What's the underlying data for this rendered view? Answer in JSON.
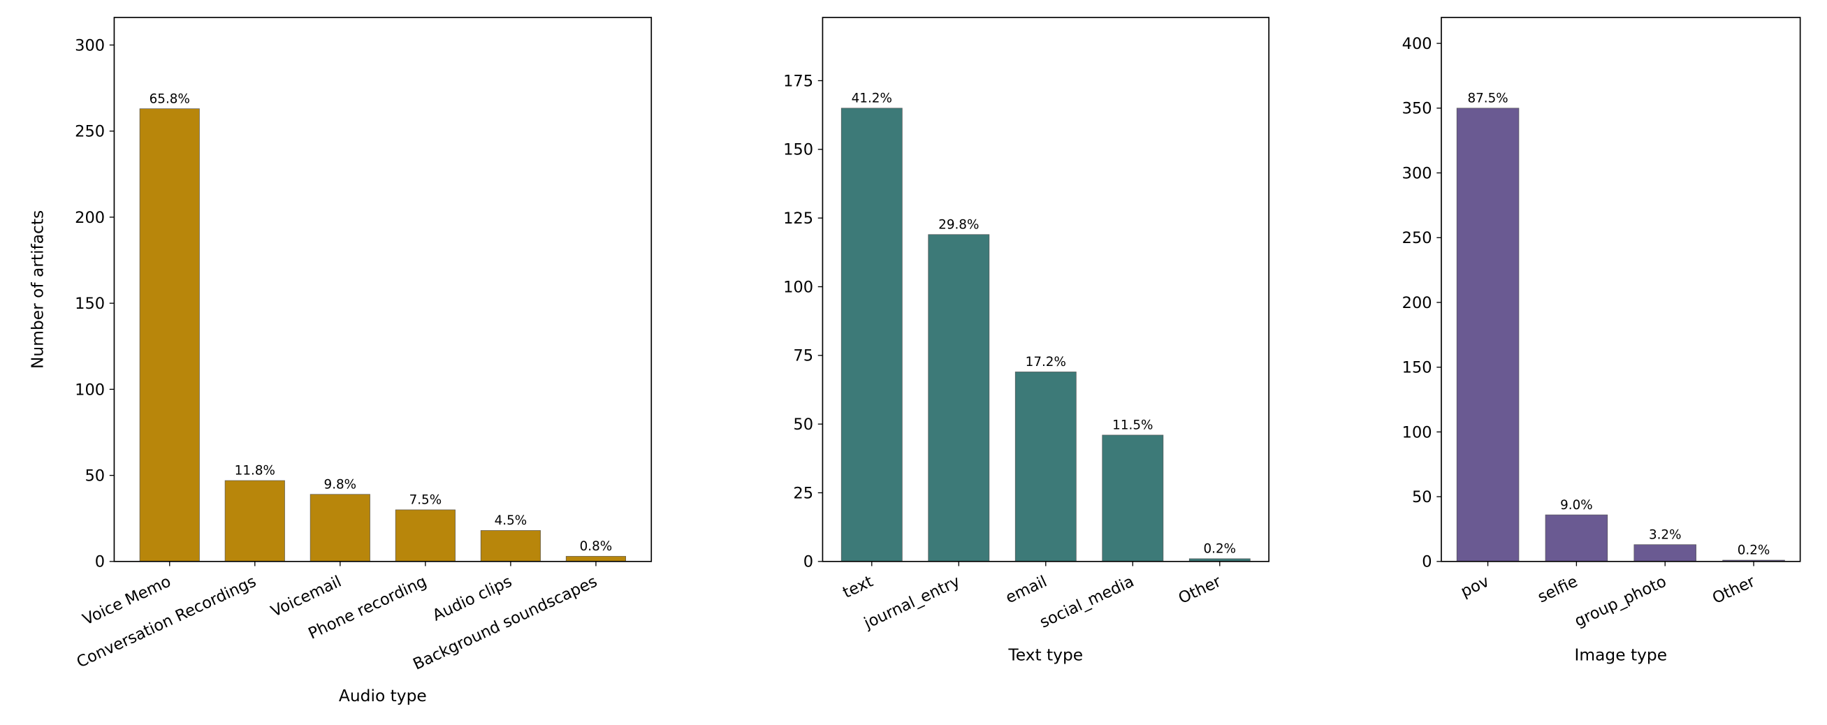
{
  "chart_data": [
    {
      "type": "bar",
      "x_label": "Audio type",
      "y_label": "Number of artifacts",
      "categories": [
        "Voice Memo",
        "Conversation Recordings",
        "Voicemail",
        "Phone recording",
        "Audio clips",
        "Background soundscapes"
      ],
      "values": [
        263,
        47,
        39,
        30,
        18,
        3
      ],
      "value_labels": [
        "65.8%",
        "11.8%",
        "9.8%",
        "7.5%",
        "4.5%",
        "0.8%"
      ],
      "color": "#b8860b",
      "ylim": [
        0,
        316
      ],
      "yticks": [
        0,
        50,
        100,
        150,
        200,
        250,
        300
      ]
    },
    {
      "type": "bar",
      "x_label": "Text type",
      "categories": [
        "text",
        "journal_entry",
        "email",
        "social_media",
        "Other"
      ],
      "values": [
        165,
        119,
        69,
        46,
        1
      ],
      "value_labels": [
        "41.2%",
        "29.8%",
        "17.2%",
        "11.5%",
        "0.2%"
      ],
      "color": "#3d7a78",
      "ylim": [
        0,
        198
      ],
      "yticks": [
        0,
        25,
        50,
        75,
        100,
        125,
        150,
        175
      ]
    },
    {
      "type": "bar",
      "x_label": "Image type",
      "categories": [
        "pov",
        "selfie",
        "group_photo",
        "Other"
      ],
      "values": [
        350,
        36,
        13,
        1
      ],
      "value_labels": [
        "87.5%",
        "9.0%",
        "3.2%",
        "0.2%"
      ],
      "color": "#6a5a92",
      "ylim": [
        0,
        420
      ],
      "yticks": [
        0,
        50,
        100,
        150,
        200,
        250,
        300,
        350,
        400
      ]
    }
  ]
}
